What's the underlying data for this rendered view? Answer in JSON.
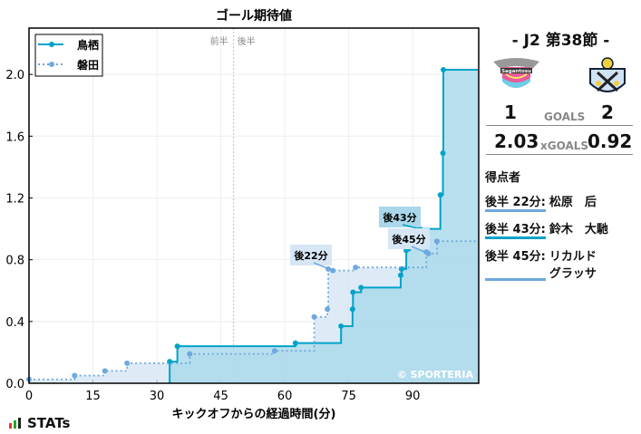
{
  "chart_data": {
    "type": "line",
    "title": "ゴール期待値",
    "xlabel": "キックオフからの経過時間(分)",
    "ylabel": "",
    "xlim": [
      0,
      105.5
    ],
    "ylim": [
      0,
      2.3
    ],
    "xticks": [
      0,
      15,
      30,
      45,
      60,
      75,
      90
    ],
    "yticks": [
      0.0,
      0.4,
      0.8,
      1.2,
      1.6,
      2.0
    ],
    "ytick_labels": [
      "0.0",
      "0.4",
      "0.8",
      "1.2",
      "1.6",
      "2.0"
    ],
    "grid": true,
    "legend_position": "top-left",
    "halftime": {
      "minute": 48,
      "labels": [
        "前半",
        "後半"
      ]
    },
    "watermark": "© SPORTERIA",
    "series": [
      {
        "name": "鳥栖",
        "color": "#00a3c8",
        "style": "solid",
        "fill": "#a8d8ea",
        "x": [
          33,
          34.8,
          62.5,
          73.2,
          75.9,
          76,
          77.9,
          87.2,
          87.4,
          88.5,
          89.3,
          91.7,
          96.5,
          97.1,
          97.2
        ],
        "y": [
          0.14,
          0.24,
          0.26,
          0.37,
          0.48,
          0.59,
          0.62,
          0.7,
          0.74,
          0.86,
          0.88,
          1.0,
          1.22,
          1.49,
          2.03
        ]
      },
      {
        "name": "磐田",
        "color": "#6fa8dc",
        "style": "dotted",
        "fill": "#d6e6f5",
        "x": [
          0,
          10.7,
          17.8,
          23,
          37.7,
          57.6,
          66.9,
          70,
          70.2,
          71.3,
          76.6,
          93.2,
          93.7,
          95.7
        ],
        "y": [
          0.025,
          0.05,
          0.08,
          0.13,
          0.19,
          0.21,
          0.43,
          0.48,
          0.74,
          0.73,
          0.75,
          0.85,
          0.84,
          0.92
        ]
      }
    ],
    "annotations": [
      {
        "label": "後22分",
        "x": 71.3,
        "y": 0.73,
        "series": "磐田"
      },
      {
        "label": "後43分",
        "x": 91.7,
        "y": 1.0,
        "series": "鳥栖"
      },
      {
        "label": "後45分",
        "x": 93.7,
        "y": 0.84,
        "series": "磐田"
      }
    ]
  },
  "match": {
    "round": "- J2 第38節 -",
    "home_goals": "1",
    "away_goals": "2",
    "goals_label": "GOALS",
    "home_xg": "2.03",
    "away_xg": "0.92",
    "xg_label": "xGOALS",
    "home_logo_text": "Sagantosu"
  },
  "scorers": {
    "title": "得点者",
    "items": [
      {
        "time": "後半 22分:",
        "name": "松原　后",
        "team": "away"
      },
      {
        "time": "後半 43分:",
        "name": "鈴木　大馳",
        "team": "home"
      },
      {
        "time": "後半 45分:",
        "name": "リカルド グラッサ",
        "team": "away"
      }
    ]
  },
  "brand": "STATs"
}
